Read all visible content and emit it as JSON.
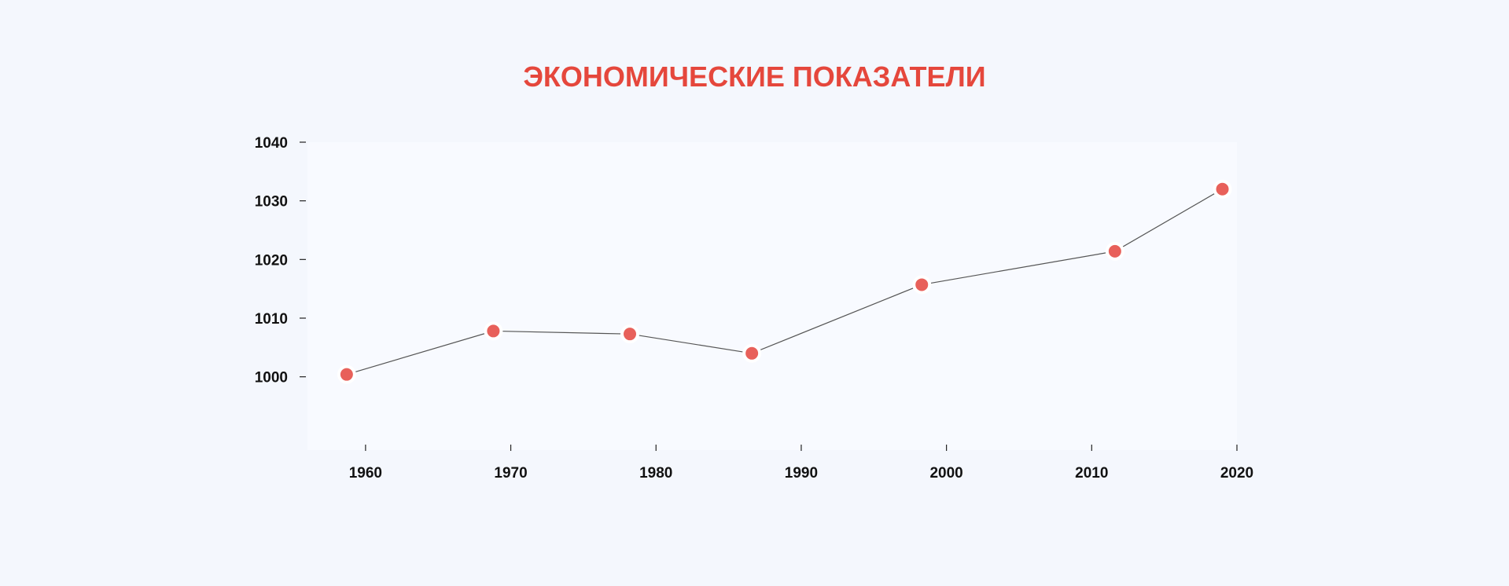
{
  "chart_data": {
    "type": "line",
    "title": "ЭКОНОМИЧЕСКИЕ ПОКАЗАТЕЛИ",
    "xlabel": "",
    "ylabel": "",
    "x_ticks": [
      "1960",
      "1970",
      "1980",
      "1990",
      "2000",
      "2010",
      "2020"
    ],
    "x_tick_values": [
      1960,
      1970,
      1980,
      1990,
      2000,
      2010,
      2020
    ],
    "y_ticks": [
      "1000",
      "1010",
      "1020",
      "1030",
      "1040"
    ],
    "y_tick_values": [
      1000,
      1010,
      1020,
      1030,
      1040
    ],
    "xlim": [
      1956,
      2020
    ],
    "ylim": [
      987.5,
      1040
    ],
    "grid": false,
    "series": [
      {
        "x": [
          1958.7,
          1968.8,
          1978.2,
          1986.6,
          1998.3,
          2011.6,
          2019.0
        ],
        "values": [
          1000.4,
          1007.8,
          1007.3,
          1004.0,
          1015.7,
          1021.4,
          1032.0
        ]
      }
    ],
    "colors": {
      "title": "#e5473c",
      "marker": "#e8605a",
      "marker_outline": "#ffffff",
      "line": "#555555",
      "plot_background": "#f8faff",
      "page_background": "#f4f7fd",
      "tick_text": "#111111"
    }
  }
}
